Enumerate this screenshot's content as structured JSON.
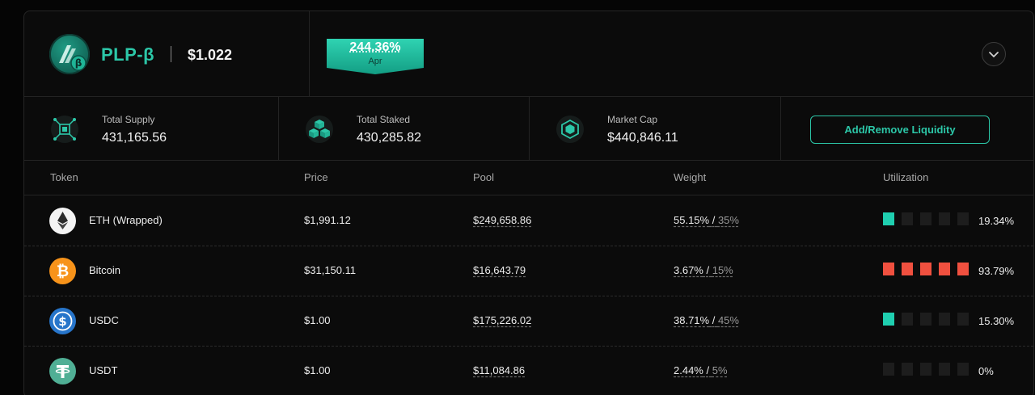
{
  "header": {
    "token_name": "PLP-β",
    "token_price": "$1.022",
    "apr": {
      "value": "244.36%",
      "label": "Apr"
    }
  },
  "stats": [
    {
      "label": "Total Supply",
      "value": "431,165.56",
      "icon": "network-cube-icon"
    },
    {
      "label": "Total Staked",
      "value": "430,285.82",
      "icon": "stacked-cubes-icon"
    },
    {
      "label": "Market Cap",
      "value": "$440,846.11",
      "icon": "box-cube-icon"
    }
  ],
  "liquidity_button": "Add/Remove Liquidity",
  "table": {
    "columns": [
      "Token",
      "Price",
      "Pool",
      "Weight",
      "Utilization"
    ],
    "rows": [
      {
        "token": "ETH (Wrapped)",
        "icon": "ethereum-icon",
        "price": "$1,991.12",
        "pool": "$249,658.86",
        "weight": "55.15%",
        "target": "35%",
        "utilization": "19.34%",
        "bars_filled": 1,
        "bar_color": "#1fcfb0"
      },
      {
        "token": "Bitcoin",
        "icon": "bitcoin-icon",
        "price": "$31,150.11",
        "pool": "$16,643.79",
        "weight": "3.67%",
        "target": "15%",
        "utilization": "93.79%",
        "bars_filled": 5,
        "bar_color": "#f0503f"
      },
      {
        "token": "USDC",
        "icon": "usdc-icon",
        "price": "$1.00",
        "pool": "$175,226.02",
        "weight": "38.71%",
        "target": "45%",
        "utilization": "15.30%",
        "bars_filled": 1,
        "bar_color": "#1fcfb0"
      },
      {
        "token": "USDT",
        "icon": "tether-icon",
        "price": "$1.00",
        "pool": "$11,084.86",
        "weight": "2.44%",
        "target": "5%",
        "utilization": "0%",
        "bars_filled": 0,
        "bar_color": "#1fcfb0"
      }
    ]
  },
  "colors": {
    "accent": "#2cc7a8",
    "danger": "#f0503f",
    "background": "#0b0b0b"
  }
}
